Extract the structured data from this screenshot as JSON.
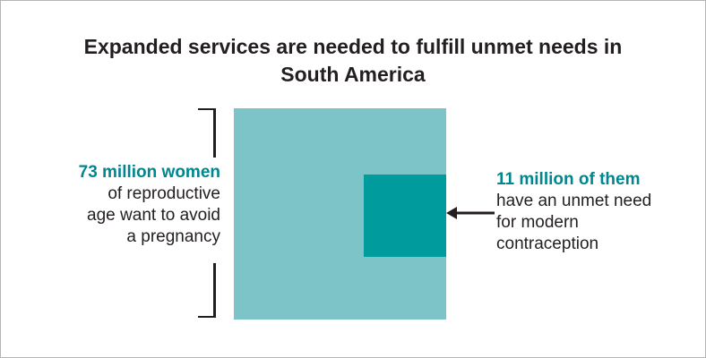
{
  "title": {
    "line1": "Expanded services are needed to fulfill unmet needs in",
    "line2": "South America"
  },
  "left_callout": {
    "highlight": "73 million women",
    "lines": [
      "of reproductive",
      "age want to avoid",
      "a pregnancy"
    ]
  },
  "right_callout": {
    "highlight": "11 million of them",
    "lines": [
      "have an unmet need",
      "for modern",
      "contraception"
    ]
  },
  "values": {
    "women_wanting_to_avoid_pregnancy_millions": 73,
    "women_with_unmet_need_millions": 11
  },
  "colors": {
    "large_square": "#7cc4c8",
    "small_square": "#009b9c",
    "highlight_text": "#00868f",
    "text": "#231f20"
  }
}
